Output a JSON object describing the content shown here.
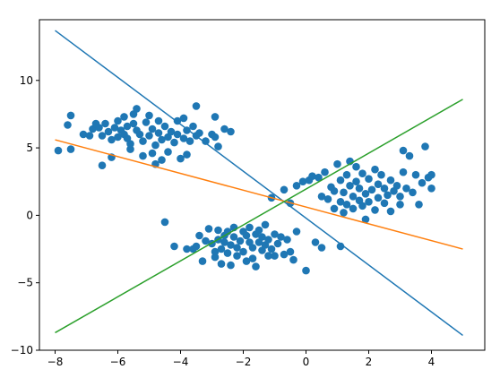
{
  "chart_data": {
    "type": "scatter",
    "title": "",
    "xlabel": "",
    "ylabel": "",
    "xlim": [
      -8.5,
      5.7
    ],
    "ylim": [
      -10,
      14.5
    ],
    "grid": false,
    "x_ticks": [
      -8,
      -6,
      -4,
      -2,
      0,
      2,
      4
    ],
    "y_ticks": [
      -10,
      -5,
      0,
      5,
      10
    ],
    "x_tick_labels": [
      "−8",
      "−6",
      "−4",
      "−2",
      "0",
      "2",
      "4"
    ],
    "y_tick_labels": [
      "−10",
      "−5",
      "0",
      "5",
      "10"
    ],
    "scatter_color": "#1f77b4",
    "points": [
      [
        -7.9,
        4.8
      ],
      [
        -7.6,
        6.7
      ],
      [
        -7.5,
        7.4
      ],
      [
        -7.5,
        4.9
      ],
      [
        -7.1,
        6.0
      ],
      [
        -6.9,
        5.9
      ],
      [
        -6.8,
        6.4
      ],
      [
        -6.7,
        6.8
      ],
      [
        -6.6,
        6.5
      ],
      [
        -6.5,
        3.7
      ],
      [
        -6.5,
        5.9
      ],
      [
        -6.4,
        6.8
      ],
      [
        -6.3,
        6.2
      ],
      [
        -6.2,
        5.6
      ],
      [
        -6.2,
        4.3
      ],
      [
        -6.1,
        6.5
      ],
      [
        -6.0,
        5.8
      ],
      [
        -6.0,
        7.0
      ],
      [
        -5.9,
        6.3
      ],
      [
        -5.8,
        6.0
      ],
      [
        -5.8,
        7.3
      ],
      [
        -5.7,
        5.7
      ],
      [
        -5.7,
        6.6
      ],
      [
        -5.6,
        4.9
      ],
      [
        -5.6,
        5.3
      ],
      [
        -5.5,
        7.5
      ],
      [
        -5.5,
        6.8
      ],
      [
        -5.4,
        7.9
      ],
      [
        -5.4,
        6.3
      ],
      [
        -5.3,
        6.0
      ],
      [
        -5.2,
        4.4
      ],
      [
        -5.2,
        5.5
      ],
      [
        -5.1,
        6.9
      ],
      [
        -5.0,
        7.4
      ],
      [
        -5.0,
        5.9
      ],
      [
        -4.9,
        4.6
      ],
      [
        -4.9,
        6.4
      ],
      [
        -4.8,
        3.8
      ],
      [
        -4.8,
        5.2
      ],
      [
        -4.7,
        6.1
      ],
      [
        -4.7,
        7.0
      ],
      [
        -4.6,
        5.6
      ],
      [
        -4.6,
        4.1
      ],
      [
        -4.5,
        6.6
      ],
      [
        -4.4,
        4.7
      ],
      [
        -4.4,
        5.8
      ],
      [
        -4.3,
        6.2
      ],
      [
        -4.2,
        5.4
      ],
      [
        -4.1,
        7.0
      ],
      [
        -4.1,
        6.0
      ],
      [
        -4.0,
        4.2
      ],
      [
        -3.9,
        5.7
      ],
      [
        -3.9,
        7.2
      ],
      [
        -3.8,
        6.3
      ],
      [
        -3.8,
        4.5
      ],
      [
        -3.7,
        5.5
      ],
      [
        -3.6,
        6.6
      ],
      [
        -3.5,
        5.9
      ],
      [
        -3.5,
        8.1
      ],
      [
        -3.4,
        6.1
      ],
      [
        -3.2,
        5.5
      ],
      [
        -3.0,
        6.0
      ],
      [
        -2.9,
        7.3
      ],
      [
        -2.9,
        5.8
      ],
      [
        -2.8,
        5.1
      ],
      [
        -2.6,
        6.4
      ],
      [
        -2.4,
        6.2
      ],
      [
        -4.5,
        -0.5
      ],
      [
        -4.2,
        -2.3
      ],
      [
        -3.8,
        -2.5
      ],
      [
        -3.6,
        -2.5
      ],
      [
        -3.5,
        -2.3
      ],
      [
        -3.4,
        -1.5
      ],
      [
        -3.3,
        -3.4
      ],
      [
        -3.2,
        -1.9
      ],
      [
        -3.1,
        -1.0
      ],
      [
        -3.0,
        -2.1
      ],
      [
        -2.9,
        -3.1
      ],
      [
        -2.9,
        -2.7
      ],
      [
        -2.8,
        -1.1
      ],
      [
        -2.8,
        -1.8
      ],
      [
        -2.7,
        -2.5
      ],
      [
        -2.7,
        -3.6
      ],
      [
        -2.6,
        -1.5
      ],
      [
        -2.6,
        -2.0
      ],
      [
        -2.5,
        -2.8
      ],
      [
        -2.5,
        -1.2
      ],
      [
        -2.4,
        -2.2
      ],
      [
        -2.4,
        -3.7
      ],
      [
        -2.3,
        -1.6
      ],
      [
        -2.3,
        -0.9
      ],
      [
        -2.2,
        -2.4
      ],
      [
        -2.2,
        -3.0
      ],
      [
        -2.1,
        -1.9
      ],
      [
        -2.0,
        -1.2
      ],
      [
        -2.0,
        -2.7
      ],
      [
        -1.9,
        -3.4
      ],
      [
        -1.9,
        -1.5
      ],
      [
        -1.8,
        -2.0
      ],
      [
        -1.8,
        -0.9
      ],
      [
        -1.7,
        -2.4
      ],
      [
        -1.7,
        -3.2
      ],
      [
        -1.6,
        -1.4
      ],
      [
        -1.6,
        -3.8
      ],
      [
        -1.5,
        -2.0
      ],
      [
        -1.5,
        -1.1
      ],
      [
        -1.4,
        -2.6
      ],
      [
        -1.4,
        -1.6
      ],
      [
        -1.3,
        -2.2
      ],
      [
        -1.3,
        -0.7
      ],
      [
        -1.2,
        -3.0
      ],
      [
        -1.2,
        -1.8
      ],
      [
        -1.1,
        -2.5
      ],
      [
        -1.0,
        -1.4
      ],
      [
        -1.0,
        -3.0
      ],
      [
        -0.9,
        -2.1
      ],
      [
        -0.8,
        -1.6
      ],
      [
        -0.7,
        -2.9
      ],
      [
        -0.6,
        -1.8
      ],
      [
        -0.5,
        -2.7
      ],
      [
        -0.3,
        -1.2
      ],
      [
        -0.4,
        -3.3
      ],
      [
        0.0,
        -4.1
      ],
      [
        0.3,
        -2.0
      ],
      [
        0.5,
        -2.4
      ],
      [
        1.1,
        -2.3
      ],
      [
        -1.1,
        1.3
      ],
      [
        -0.7,
        1.9
      ],
      [
        -0.5,
        0.9
      ],
      [
        -0.3,
        2.2
      ],
      [
        -0.1,
        2.5
      ],
      [
        0.1,
        2.6
      ],
      [
        0.2,
        2.9
      ],
      [
        0.4,
        2.8
      ],
      [
        0.5,
        1.4
      ],
      [
        0.6,
        3.2
      ],
      [
        0.7,
        1.2
      ],
      [
        0.8,
        2.1
      ],
      [
        0.9,
        0.5
      ],
      [
        0.9,
        1.8
      ],
      [
        1.0,
        3.8
      ],
      [
        1.1,
        1.0
      ],
      [
        1.1,
        2.6
      ],
      [
        1.2,
        0.2
      ],
      [
        1.2,
        1.7
      ],
      [
        1.3,
        3.0
      ],
      [
        1.3,
        0.8
      ],
      [
        1.4,
        2.2
      ],
      [
        1.4,
        4.0
      ],
      [
        1.5,
        1.4
      ],
      [
        1.5,
        0.5
      ],
      [
        1.6,
        2.5
      ],
      [
        1.6,
        3.6
      ],
      [
        1.7,
        1.1
      ],
      [
        1.7,
        2.0
      ],
      [
        1.8,
        0.7
      ],
      [
        1.8,
        3.1
      ],
      [
        1.9,
        1.6
      ],
      [
        1.9,
        -0.3
      ],
      [
        2.0,
        2.7
      ],
      [
        2.0,
        1.0
      ],
      [
        2.1,
        1.9
      ],
      [
        2.2,
        3.4
      ],
      [
        2.2,
        0.4
      ],
      [
        2.3,
        2.3
      ],
      [
        2.3,
        1.3
      ],
      [
        2.4,
        3.0
      ],
      [
        2.5,
        0.9
      ],
      [
        2.5,
        2.0
      ],
      [
        2.6,
        1.5
      ],
      [
        2.7,
        2.6
      ],
      [
        2.7,
        0.3
      ],
      [
        2.8,
        1.8
      ],
      [
        2.9,
        2.2
      ],
      [
        3.0,
        0.8
      ],
      [
        3.0,
        1.4
      ],
      [
        3.1,
        3.2
      ],
      [
        3.1,
        4.8
      ],
      [
        3.2,
        2.0
      ],
      [
        3.3,
        4.4
      ],
      [
        3.4,
        1.7
      ],
      [
        3.5,
        3.0
      ],
      [
        3.6,
        0.8
      ],
      [
        3.7,
        2.4
      ],
      [
        3.8,
        5.1
      ],
      [
        3.9,
        2.8
      ],
      [
        4.0,
        3.0
      ],
      [
        4.0,
        2.0
      ]
    ],
    "lines": [
      {
        "color": "#1f77b4",
        "x": [
          -8,
          5
        ],
        "y": [
          13.7,
          -8.9
        ]
      },
      {
        "color": "#ff7f0e",
        "x": [
          -8,
          5
        ],
        "y": [
          5.6,
          -2.5
        ]
      },
      {
        "color": "#2ca02c",
        "x": [
          -8,
          5
        ],
        "y": [
          -8.7,
          8.6
        ]
      }
    ]
  }
}
